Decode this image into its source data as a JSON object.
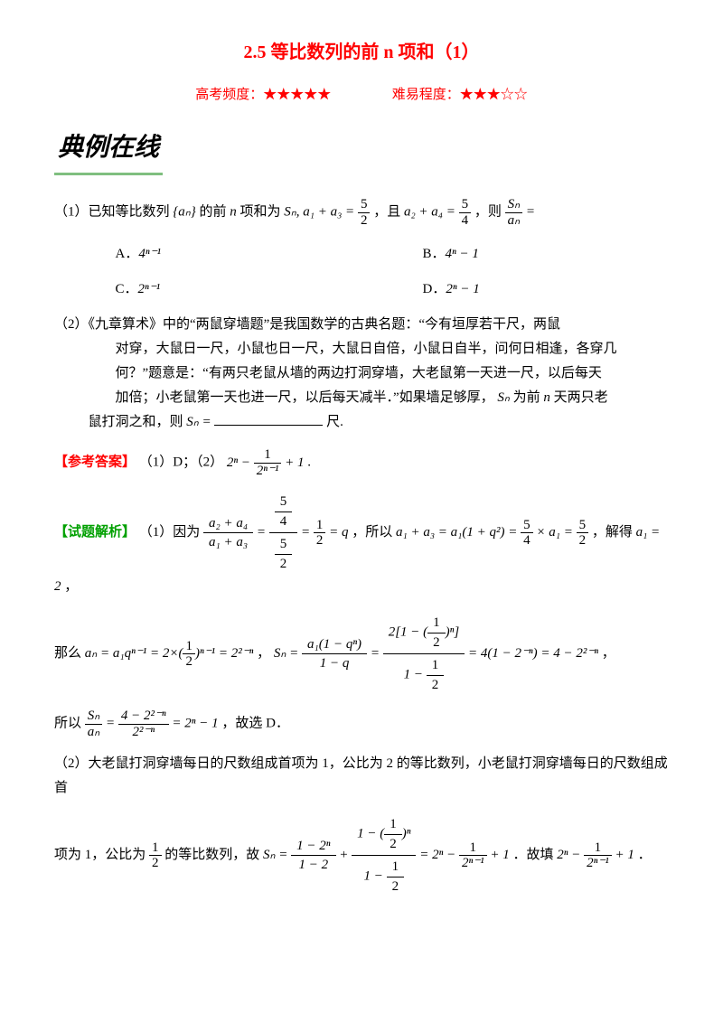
{
  "doc": {
    "title": "2.5 等比数列的前 n 项和（1）",
    "meta": {
      "freq_label": "高考频度：",
      "freq_stars": "★★★★★",
      "diff_label": "难易程度：",
      "diff_stars": "★★★☆☆"
    },
    "section_header": "典例在线",
    "q1": {
      "stem_a": "（1）已知等比数列",
      "stem_b": "的前",
      "stem_c": "项和为",
      "stem_d": "，且",
      "stem_e": "，则",
      "seq": "{aₙ}",
      "n": "n",
      "Sn": "Sₙ, a₁ + a₃ =",
      "f1n": "5",
      "f1d": "2",
      "mid": "a₂ + a₄ =",
      "f2n": "5",
      "f2d": "4",
      "ratio_num": "Sₙ",
      "ratio_den": "aₙ",
      "ratio_eq": "=",
      "optA_l": "A．",
      "optA_m": "4ⁿ⁻¹",
      "optB_l": "B．",
      "optB_m": "4ⁿ − 1",
      "optC_l": "C．",
      "optC_m": "2ⁿ⁻¹",
      "optD_l": "D．",
      "optD_m": "2ⁿ − 1"
    },
    "q2": {
      "l1": "（2）《九章算术》中的“两鼠穿墙题”是我国数学的古典名题：“今有垣厚若干尺，两鼠",
      "l2": "对穿，大鼠日一尺，小鼠也日一尺，大鼠日自倍，小鼠日自半，问何日相逢，各穿几",
      "l3": "何？”题意是：“有两只老鼠从墙的两边打洞穿墙，大老鼠第一天进一尺，以后每天",
      "l4a": "加倍；小老鼠第一天也进一尺，以后每天减半．”如果墙足够厚，",
      "l4_Sn": "Sₙ",
      "l4b": "为前",
      "l4_n": "n",
      "l4c": "天两只老",
      "l5a": "鼠打洞之和，则",
      "l5_Sn": "Sₙ =",
      "l5b": "尺."
    },
    "answer": {
      "label": "【参考答案】",
      "p1": "（1）D；（2）",
      "p2_pre": "2ⁿ −",
      "p2_fnum": "1",
      "p2_fden": "2ⁿ⁻¹",
      "p2_post": "+ 1",
      "p2_dot": "."
    },
    "analysis": {
      "label": "【试题解析】",
      "p1a": "（1）因为",
      "p1_f_outer_num_num": "5",
      "p1_f_outer_num_den": "4",
      "p1_f_outer_den_num": "5",
      "p1_f_outer_den_den": "2",
      "p1_lhs_num": "a₂ + a₄",
      "p1_lhs_den": "a₁ + a₃",
      "p1_mid": "=",
      "p1_half_num": "1",
      "p1_half_den": "2",
      "p1_eqq": "= q",
      "p1b": "，所以",
      "p1_expr1": "a₁ + a₃ = a₁(1 + q²) =",
      "p1_f54n": "5",
      "p1_f54d": "4",
      "p1_times": "× a₁ =",
      "p1_f52n": "5",
      "p1_f52d": "2",
      "p1c": "，解得",
      "p1_a1": "a₁ = 2",
      "p1d": "，",
      "p2a": "那么",
      "p2_an": "aₙ = a₁qⁿ⁻¹ = 2×(",
      "p2_h1n": "1",
      "p2_h1d": "2",
      "p2_an2": ")ⁿ⁻¹ = 2²⁻ⁿ",
      "p2_sep": "，",
      "p2_Sn": "Sₙ =",
      "p2_f1num": "a₁(1 − qⁿ)",
      "p2_f1den": "1 − q",
      "p2_eq": "=",
      "p2_f2num_a": "2[1 − (",
      "p2_f2num_hn": "1",
      "p2_f2num_hd": "2",
      "p2_f2num_b": ")ⁿ]",
      "p2_f2den_a": "1 −",
      "p2_f2den_hn": "1",
      "p2_f2den_hd": "2",
      "p2_res": "= 4(1 − 2⁻ⁿ) = 4 − 2²⁻ⁿ",
      "p2_end": "，",
      "p3a": "所以",
      "p3_fnum": "Sₙ",
      "p3_fden": "aₙ",
      "p3_eq": "=",
      "p3_f2num": "4 − 2²⁻ⁿ",
      "p3_f2den": "2²⁻ⁿ",
      "p3_res": "= 2ⁿ − 1",
      "p3b": "，故选 D．",
      "p4": "（2）大老鼠打洞穿墙每日的尺数组成首项为 1，公比为 2 的等比数列，小老鼠打洞穿墙每日的尺数组成首",
      "p5a": "项为 1，公比为",
      "p5_hn": "1",
      "p5_hd": "2",
      "p5b": "的等比数列，故",
      "p5_Sn": "Sₙ =",
      "p5_f1num": "1 − 2ⁿ",
      "p5_f1den": "1 − 2",
      "p5_plus": "+",
      "p5_f2num_a": "1 − (",
      "p5_f2num_hn": "1",
      "p5_f2num_hd": "2",
      "p5_f2num_b": ")ⁿ",
      "p5_f2den_a": "1 −",
      "p5_f2den_hn": "1",
      "p5_f2den_hd": "2",
      "p5_eq": "= 2ⁿ −",
      "p5_r_hn": "1",
      "p5_r_hd": "2ⁿ⁻¹",
      "p5_r2": "+ 1",
      "p5c": "．故填",
      "p5_ans_a": "2ⁿ −",
      "p5_ans_hn": "1",
      "p5_ans_hd": "2ⁿ⁻¹",
      "p5_ans_b": "+ 1",
      "p5d": "．"
    },
    "colors": {
      "title": "#ff0000",
      "answer_label": "#ff0000",
      "analysis_label": "#00a000",
      "underline": "#7fbf7f",
      "text": "#000000",
      "bg": "#ffffff"
    },
    "typography": {
      "title_fontsize": 20,
      "body_fontsize": 15,
      "section_fontsize": 28
    }
  }
}
